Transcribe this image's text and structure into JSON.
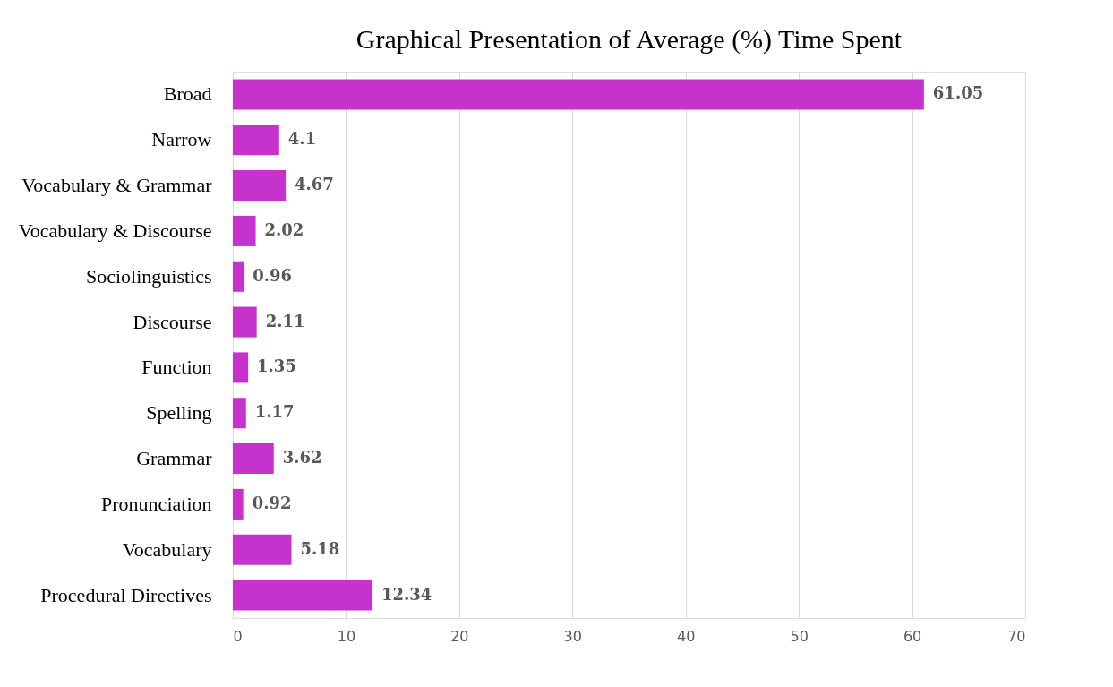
{
  "chart_data": {
    "type": "bar",
    "orientation": "horizontal",
    "title": "Graphical Presentation of Average (%) Time Spent",
    "categories": [
      "Broad",
      "Narrow",
      "Vocabulary & Grammar",
      "Vocabulary & Discourse",
      "Sociolinguistics",
      "Discourse",
      "Function",
      "Spelling",
      "Grammar",
      "Pronunciation",
      "Vocabulary",
      "Procedural Directives"
    ],
    "values": [
      61.05,
      4.1,
      4.67,
      2.02,
      0.96,
      2.11,
      1.35,
      1.17,
      3.62,
      0.92,
      5.18,
      12.34
    ],
    "color": "#c633cc",
    "xlim": [
      0,
      70
    ],
    "xticks": [
      0,
      10,
      20,
      30,
      40,
      50,
      60,
      70
    ],
    "grid": "x",
    "data_labels": true
  }
}
